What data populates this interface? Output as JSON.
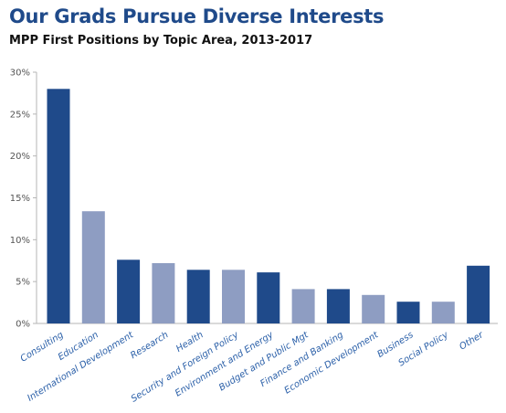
{
  "header": {
    "title": "Our Grads Pursue Diverse Interests",
    "subtitle": "MPP First Positions by Topic Area, 2013-2017"
  },
  "colors": {
    "dark_bar": "#1f4a8a",
    "light_bar": "#8e9dc2",
    "axis": "#b5b5b5",
    "label": "#2a5fa8"
  },
  "chart_data": {
    "type": "bar",
    "title": "Our Grads Pursue Diverse Interests",
    "subtitle": "MPP First Positions by Topic Area, 2013-2017",
    "categories": [
      "Consulting",
      "Education",
      "International Development",
      "Research",
      "Health",
      "Security and Foreign Policy",
      "Environment and Energy",
      "Budget and Public Mgt",
      "Finance and Banking",
      "Economic Development",
      "Business",
      "Social Policy",
      "Other"
    ],
    "values": [
      28.0,
      13.4,
      7.6,
      7.2,
      6.4,
      6.4,
      6.1,
      4.1,
      4.1,
      3.4,
      2.6,
      2.6,
      6.9
    ],
    "bar_shades": [
      "dark",
      "light",
      "dark",
      "light",
      "dark",
      "light",
      "dark",
      "light",
      "dark",
      "light",
      "dark",
      "light",
      "dark"
    ],
    "ylim": [
      0,
      30
    ],
    "yticks": [
      "0%",
      "5%",
      "10%",
      "15%",
      "20%",
      "25%",
      "30%"
    ],
    "ytick_values": [
      0,
      5,
      10,
      15,
      20,
      25,
      30
    ],
    "xlabel": "",
    "ylabel": "",
    "grid": false,
    "legend": false
  }
}
